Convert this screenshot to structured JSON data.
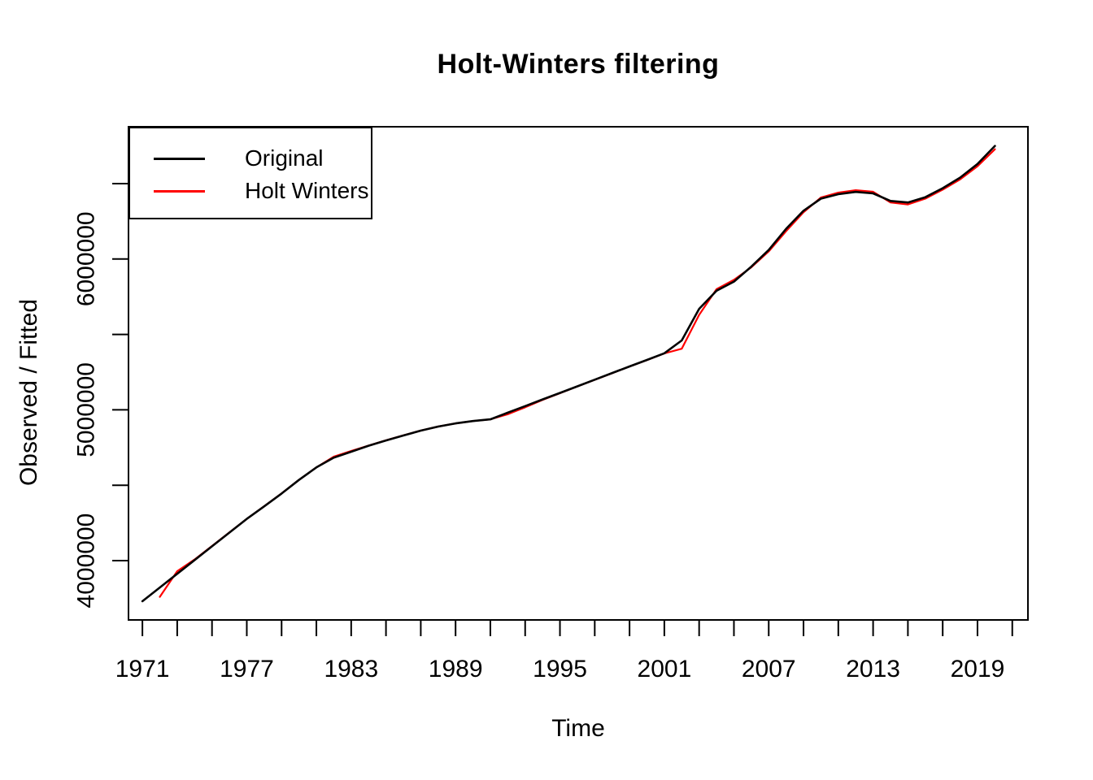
{
  "title": "Holt-Winters filtering",
  "legend": {
    "items": [
      {
        "label": "Original",
        "color": "#000000"
      },
      {
        "label": "Holt Winters",
        "color": "#ff0000"
      }
    ]
  },
  "chart_data": {
    "type": "line",
    "title": "Holt-Winters filtering",
    "xlabel": "Time",
    "ylabel": "Observed / Fitted",
    "xlim": [
      1970.2,
      2021.9
    ],
    "ylim": [
      3607000,
      6877000
    ],
    "grid": false,
    "legend_position": "top-left",
    "x_ticks": [
      1971,
      1973,
      1975,
      1977,
      1979,
      1981,
      1983,
      1985,
      1987,
      1989,
      1991,
      1993,
      1995,
      1997,
      1999,
      2001,
      2003,
      2005,
      2007,
      2009,
      2011,
      2013,
      2015,
      2017,
      2019,
      2021
    ],
    "x_labeled_ticks": [
      1971,
      1977,
      1983,
      1989,
      1995,
      2001,
      2007,
      2013,
      2019
    ],
    "y_ticks": [
      4000000,
      4500000,
      5000000,
      5500000,
      6000000,
      6500000
    ],
    "y_labeled_ticks": [
      4000000,
      5000000,
      6000000
    ],
    "series": [
      {
        "name": "Original",
        "color": "#000000",
        "x": [
          1971,
          1972,
          1973,
          1974,
          1975,
          1976,
          1977,
          1978,
          1979,
          1980,
          1981,
          1982,
          1983,
          1984,
          1985,
          1986,
          1987,
          1988,
          1989,
          1990,
          1991,
          1992,
          1993,
          1994,
          1995,
          1996,
          1997,
          1998,
          1999,
          2000,
          2001,
          2002,
          2003,
          2004,
          2005,
          2006,
          2007,
          2008,
          2009,
          2010,
          2011,
          2012,
          2013,
          2014,
          2015,
          2016,
          2017,
          2018,
          2019,
          2020
        ],
        "values": [
          3731000,
          3822000,
          3913000,
          4004000,
          4095000,
          4186000,
          4277000,
          4360000,
          4445000,
          4535000,
          4618000,
          4683000,
          4722000,
          4762000,
          4797000,
          4830000,
          4862000,
          4889000,
          4910000,
          4926000,
          4937000,
          4981000,
          5025000,
          5069000,
          5112000,
          5156000,
          5200000,
          5244000,
          5288000,
          5331000,
          5375000,
          5460000,
          5670000,
          5790000,
          5850000,
          5950000,
          6060000,
          6200000,
          6320000,
          6400000,
          6430000,
          6445000,
          6435000,
          6385000,
          6375000,
          6410000,
          6470000,
          6540000,
          6630000,
          6750000
        ]
      },
      {
        "name": "Holt Winters",
        "color": "#ff0000",
        "x": [
          1972,
          1973,
          1974,
          1975,
          1976,
          1977,
          1978,
          1979,
          1980,
          1981,
          1982,
          1983,
          1984,
          1985,
          1986,
          1987,
          1988,
          1989,
          1990,
          1991,
          1992,
          1993,
          1994,
          1995,
          1996,
          1997,
          1998,
          1999,
          2000,
          2001,
          2002,
          2003,
          2004,
          2005,
          2006,
          2007,
          2008,
          2009,
          2010,
          2011,
          2012,
          2013,
          2014,
          2015,
          2016,
          2017,
          2018,
          2019,
          2020
        ],
        "values": [
          3760000,
          3930000,
          4008000,
          4097000,
          4187000,
          4277000,
          4361000,
          4446000,
          4536000,
          4618000,
          4690000,
          4727000,
          4763000,
          4798000,
          4831000,
          4863000,
          4889000,
          4910000,
          4926000,
          4937000,
          4971000,
          5017000,
          5066000,
          5110000,
          5155000,
          5199000,
          5243000,
          5287000,
          5330000,
          5374000,
          5405000,
          5630000,
          5800000,
          5862000,
          5945000,
          6050000,
          6185000,
          6310000,
          6408000,
          6440000,
          6456000,
          6446000,
          6375000,
          6362000,
          6400000,
          6460000,
          6528000,
          6615000,
          6728000
        ]
      }
    ]
  }
}
